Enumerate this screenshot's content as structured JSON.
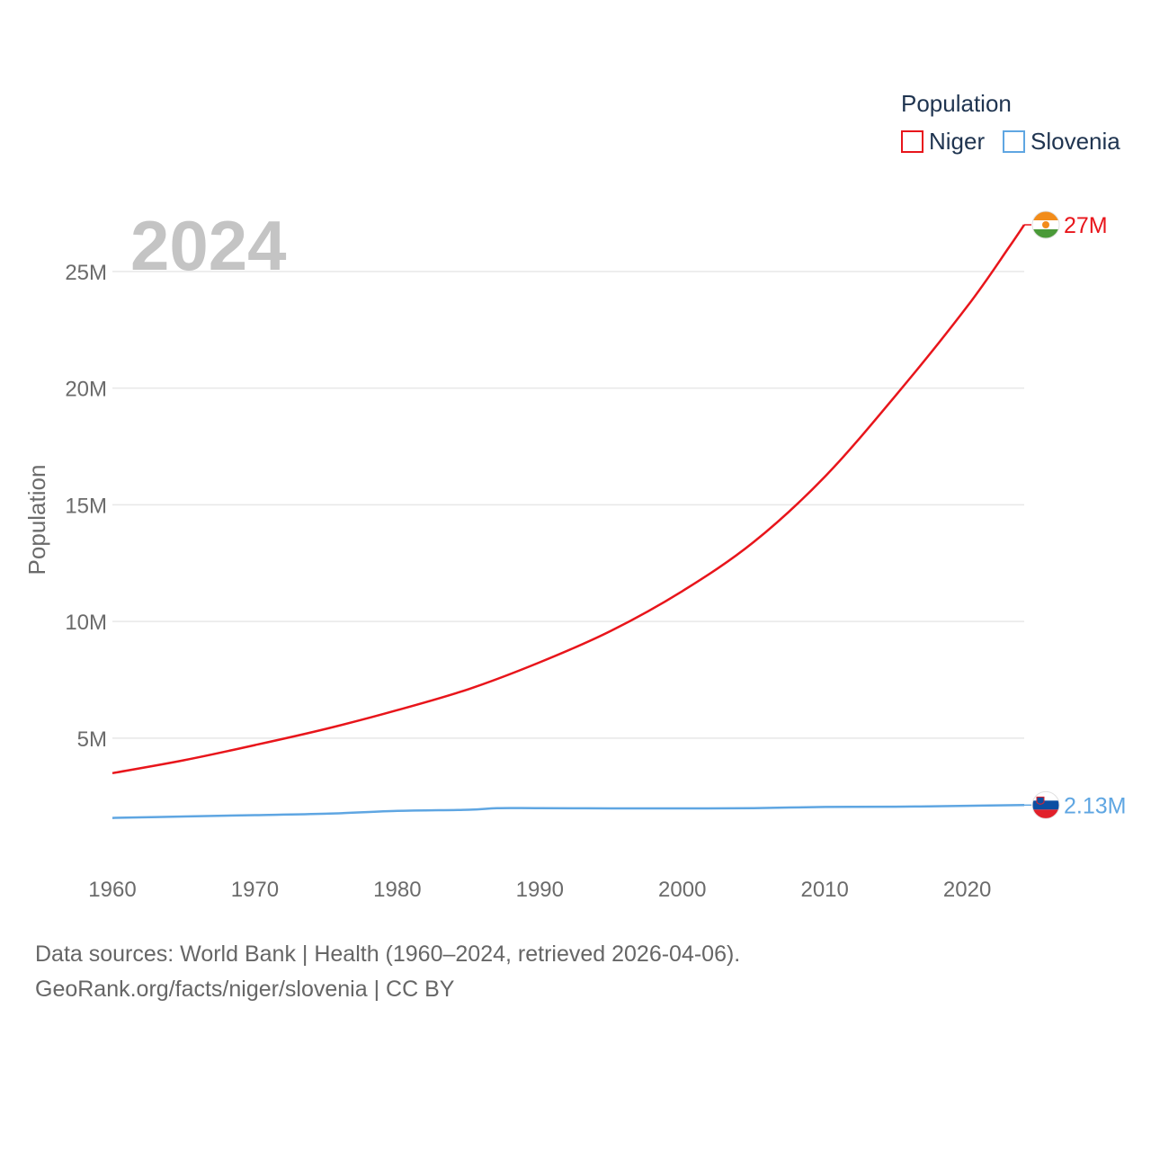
{
  "chart_data": {
    "type": "line",
    "title": "Population",
    "year_label": "2024",
    "ylabel": "Population",
    "xlabel": "",
    "xlim": [
      1960,
      2024
    ],
    "ylim": [
      0,
      27000000
    ],
    "xticks": [
      1960,
      1970,
      1980,
      1990,
      2000,
      2010,
      2020
    ],
    "yticks": [
      {
        "value": 5000000,
        "label": "5M"
      },
      {
        "value": 10000000,
        "label": "10M"
      },
      {
        "value": 15000000,
        "label": "15M"
      },
      {
        "value": 20000000,
        "label": "20M"
      },
      {
        "value": 25000000,
        "label": "25M"
      }
    ],
    "grid": true,
    "legend": {
      "title": "Population",
      "position": "top-right"
    },
    "series": [
      {
        "name": "Niger",
        "color": "#e8151b",
        "end_label": "27M",
        "flag_icon": "niger-flag-icon",
        "points": [
          [
            1960,
            3500000
          ],
          [
            1965,
            4050000
          ],
          [
            1970,
            4700000
          ],
          [
            1975,
            5400000
          ],
          [
            1980,
            6200000
          ],
          [
            1985,
            7100000
          ],
          [
            1990,
            8250000
          ],
          [
            1995,
            9600000
          ],
          [
            2000,
            11300000
          ],
          [
            2005,
            13400000
          ],
          [
            2010,
            16200000
          ],
          [
            2015,
            19700000
          ],
          [
            2020,
            23500000
          ],
          [
            2023,
            26100000
          ],
          [
            2024,
            27000000
          ]
        ]
      },
      {
        "name": "Slovenia",
        "color": "#5fa6e2",
        "end_label": "2.13M",
        "flag_icon": "slovenia-flag-icon",
        "points": [
          [
            1960,
            1580000
          ],
          [
            1965,
            1640000
          ],
          [
            1970,
            1700000
          ],
          [
            1975,
            1760000
          ],
          [
            1980,
            1880000
          ],
          [
            1985,
            1930000
          ],
          [
            1987,
            2000000
          ],
          [
            1990,
            2000000
          ],
          [
            1995,
            1990000
          ],
          [
            2000,
            1990000
          ],
          [
            2005,
            2000000
          ],
          [
            2010,
            2050000
          ],
          [
            2015,
            2060000
          ],
          [
            2020,
            2100000
          ],
          [
            2024,
            2130000
          ]
        ]
      }
    ]
  },
  "source": {
    "line1": "Data sources: World Bank | Health (1960–2024, retrieved 2026-04-06).",
    "line2": "GeoRank.org/facts/niger/slovenia | CC BY"
  }
}
